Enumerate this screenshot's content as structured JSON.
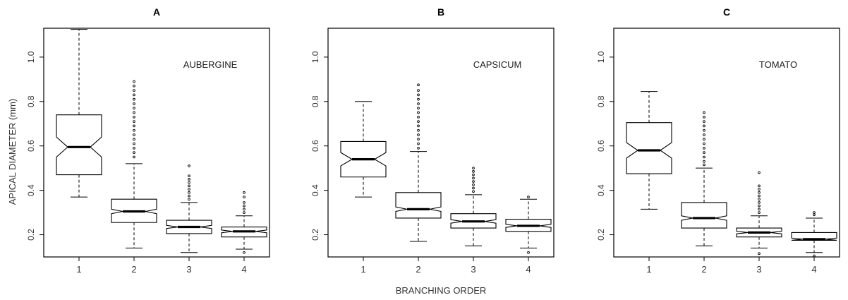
{
  "figure": {
    "ylabel": "APICAL DIAMETER (mm)",
    "xlabel": "BRANCHING ORDER"
  },
  "chart_data": [
    {
      "type": "boxplot",
      "panel_label": "A",
      "crop": "AUBERGINE",
      "categories": [
        "1",
        "2",
        "3",
        "4"
      ],
      "yticks": [
        "0.2",
        "0.4",
        "0.6",
        "0.8",
        "1.0"
      ],
      "ylim": [
        0.1,
        1.13
      ],
      "notched": true,
      "boxes": [
        {
          "category": "1",
          "whisker_low": 0.37,
          "q1": 0.47,
          "median": 0.595,
          "q3": 0.74,
          "whisker_high": 1.125,
          "notch": [
            0.55,
            0.64
          ],
          "outliers": []
        },
        {
          "category": "2",
          "whisker_low": 0.14,
          "q1": 0.255,
          "median": 0.305,
          "q3": 0.36,
          "whisker_high": 0.52,
          "notch": [
            0.295,
            0.315
          ],
          "outliers": [
            0.55,
            0.57,
            0.59,
            0.61,
            0.63,
            0.65,
            0.67,
            0.69,
            0.71,
            0.73,
            0.75,
            0.77,
            0.79,
            0.81,
            0.83,
            0.85,
            0.87,
            0.89
          ]
        },
        {
          "category": "3",
          "whisker_low": 0.12,
          "q1": 0.205,
          "median": 0.235,
          "q3": 0.265,
          "whisker_high": 0.345,
          "notch": [
            0.228,
            0.242
          ],
          "outliers": [
            0.36,
            0.375,
            0.39,
            0.405,
            0.42,
            0.435,
            0.45,
            0.465,
            0.51
          ]
        },
        {
          "category": "4",
          "whisker_low": 0.135,
          "q1": 0.19,
          "median": 0.215,
          "q3": 0.235,
          "whisker_high": 0.285,
          "notch": [
            0.209,
            0.221
          ],
          "outliers": [
            0.12,
            0.3,
            0.315,
            0.33,
            0.345,
            0.37,
            0.39
          ]
        }
      ]
    },
    {
      "type": "boxplot",
      "panel_label": "B",
      "crop": "CAPSICUM",
      "categories": [
        "1",
        "2",
        "3",
        "4"
      ],
      "yticks": [
        "0.2",
        "0.4",
        "0.6",
        "0.8",
        "1.0"
      ],
      "ylim": [
        0.1,
        1.13
      ],
      "notched": true,
      "boxes": [
        {
          "category": "1",
          "whisker_low": 0.37,
          "q1": 0.46,
          "median": 0.54,
          "q3": 0.62,
          "whisker_high": 0.8,
          "notch": [
            0.51,
            0.57
          ],
          "outliers": []
        },
        {
          "category": "2",
          "whisker_low": 0.17,
          "q1": 0.275,
          "median": 0.315,
          "q3": 0.39,
          "whisker_high": 0.575,
          "notch": [
            0.305,
            0.325
          ],
          "outliers": [
            0.59,
            0.61,
            0.63,
            0.65,
            0.67,
            0.69,
            0.71,
            0.73,
            0.75,
            0.77,
            0.79,
            0.81,
            0.83,
            0.85,
            0.875
          ]
        },
        {
          "category": "3",
          "whisker_low": 0.15,
          "q1": 0.23,
          "median": 0.26,
          "q3": 0.295,
          "whisker_high": 0.38,
          "notch": [
            0.252,
            0.268
          ],
          "outliers": [
            0.395,
            0.41,
            0.425,
            0.44,
            0.455,
            0.47,
            0.485,
            0.5
          ]
        },
        {
          "category": "4",
          "whisker_low": 0.14,
          "q1": 0.215,
          "median": 0.24,
          "q3": 0.27,
          "whisker_high": 0.36,
          "notch": [
            0.233,
            0.247
          ],
          "outliers": [
            0.12,
            0.37
          ]
        }
      ]
    },
    {
      "type": "boxplot",
      "panel_label": "C",
      "crop": "TOMATO",
      "categories": [
        "1",
        "2",
        "3",
        "4"
      ],
      "yticks": [
        "0.2",
        "0.4",
        "0.6",
        "0.8",
        "1.0"
      ],
      "ylim": [
        0.1,
        1.13
      ],
      "notched": true,
      "boxes": [
        {
          "category": "1",
          "whisker_low": 0.315,
          "q1": 0.475,
          "median": 0.58,
          "q3": 0.705,
          "whisker_high": 0.845,
          "notch": [
            0.545,
            0.615
          ],
          "outliers": []
        },
        {
          "category": "2",
          "whisker_low": 0.15,
          "q1": 0.23,
          "median": 0.275,
          "q3": 0.345,
          "whisker_high": 0.5,
          "notch": [
            0.265,
            0.285
          ],
          "outliers": [
            0.515,
            0.53,
            0.55,
            0.57,
            0.59,
            0.61,
            0.63,
            0.65,
            0.67,
            0.69,
            0.71,
            0.73,
            0.75
          ]
        },
        {
          "category": "3",
          "whisker_low": 0.14,
          "q1": 0.19,
          "median": 0.21,
          "q3": 0.23,
          "whisker_high": 0.285,
          "notch": [
            0.204,
            0.216
          ],
          "outliers": [
            0.115,
            0.3,
            0.315,
            0.33,
            0.345,
            0.36,
            0.375,
            0.39,
            0.405,
            0.42,
            0.48
          ]
        },
        {
          "category": "4",
          "whisker_low": 0.12,
          "q1": 0.175,
          "median": 0.18,
          "q3": 0.21,
          "whisker_high": 0.275,
          "notch": [
            0.175,
            0.185
          ],
          "outliers": [
            0.105,
            0.29,
            0.3
          ]
        }
      ]
    }
  ]
}
